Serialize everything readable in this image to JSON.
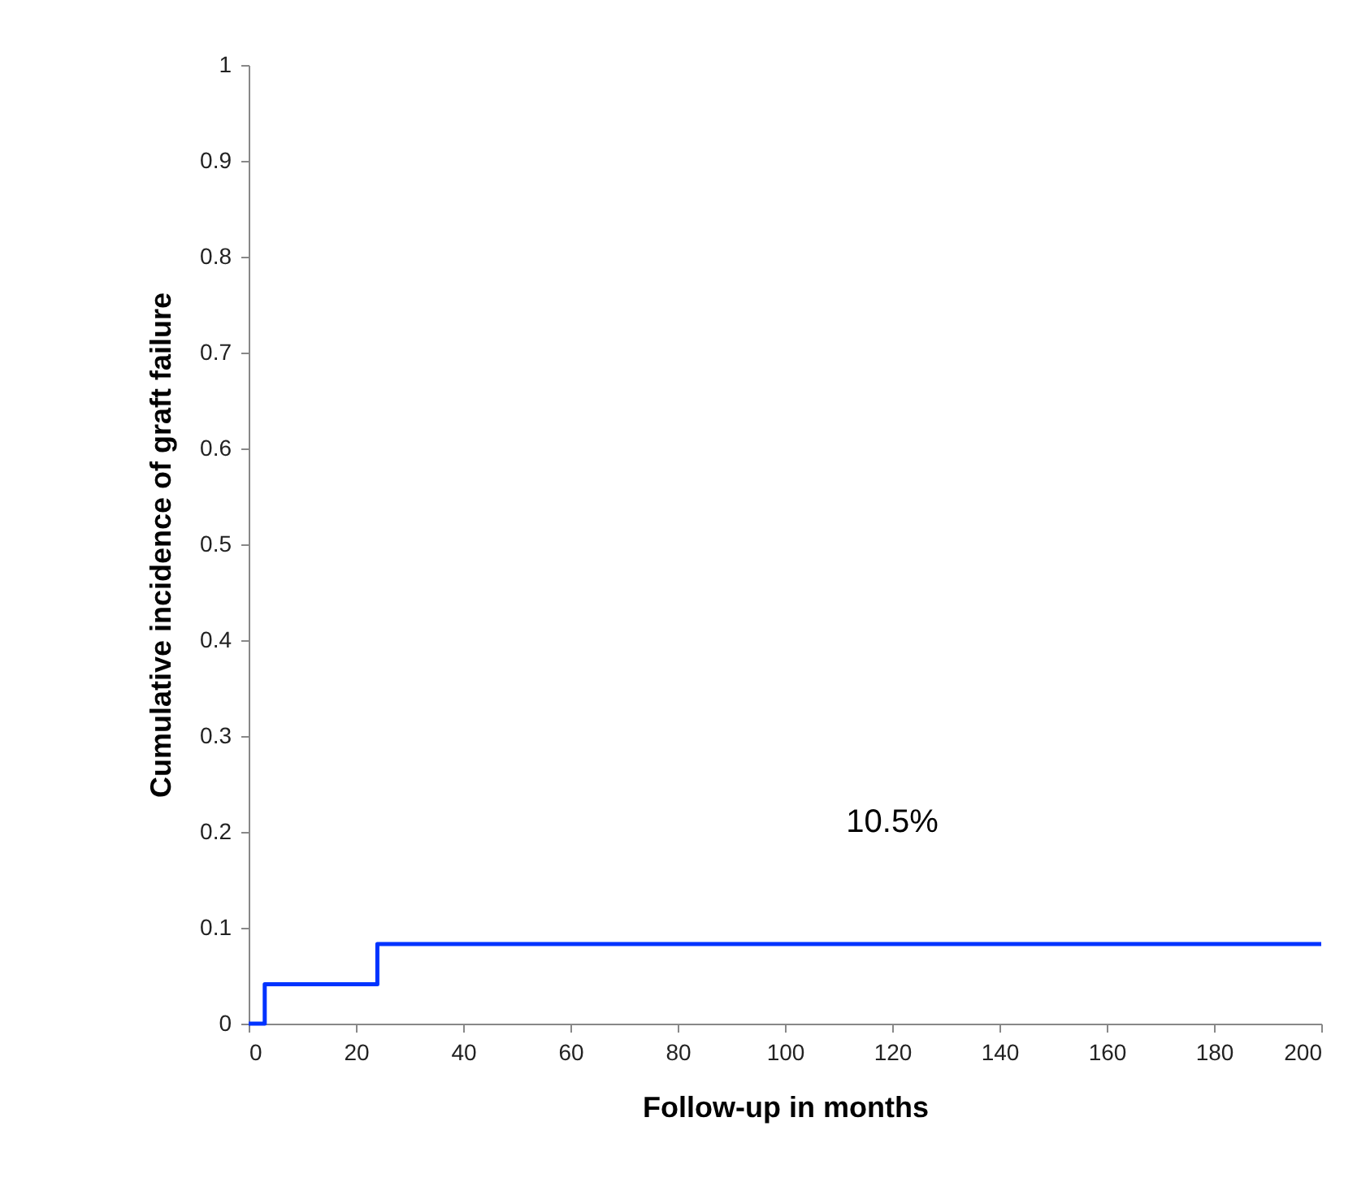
{
  "chart_data": {
    "type": "step",
    "xlabel": "Follow-up in months",
    "ylabel": "Cumulative incidence of graft failure",
    "x": [
      0,
      3,
      24,
      200
    ],
    "series": [
      {
        "color": "#0033ff",
        "values": [
          0,
          0.041,
          0.083,
          0.083
        ]
      }
    ],
    "xlim": [
      0,
      200
    ],
    "xticks": [
      0,
      20,
      40,
      60,
      80,
      100,
      120,
      140,
      160,
      180,
      200
    ],
    "ylim": [
      0,
      1
    ],
    "yticks": [
      0,
      0.1,
      0.2,
      0.3,
      0.4,
      0.5,
      0.6,
      0.7,
      0.8,
      0.9,
      1
    ],
    "annotations": [
      "10.5%"
    ],
    "grid": false
  }
}
